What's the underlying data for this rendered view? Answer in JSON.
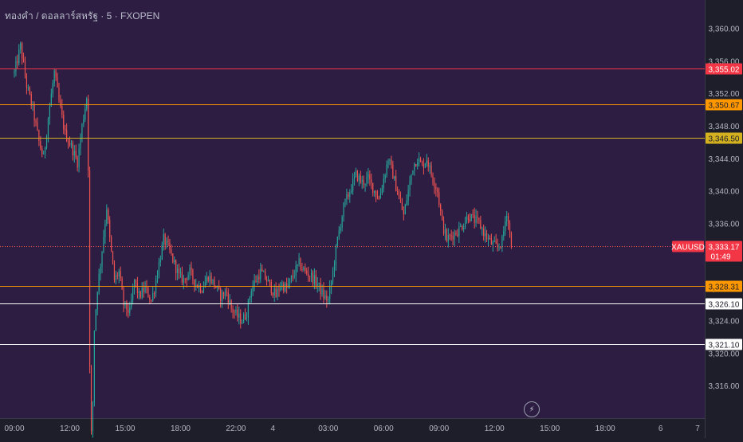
{
  "header": {
    "title": "ทองคำ / ดอลลาร์สหรัฐ · 5 · FXOPEN"
  },
  "colors": {
    "background": "#2d1d43",
    "axis_bg": "#1e1e2a",
    "bull": "#26a69a",
    "bear": "#ef5350",
    "red_level": "#f23645",
    "orange_level": "#ff9800",
    "yellow_level": "#d4b21f",
    "white_level": "#ffffff"
  },
  "icons": {
    "flash": "lightning-icon"
  },
  "chart_data": {
    "type": "candlestick",
    "symbol": "XAUUSD",
    "timeframe": "5",
    "ylim": [
      3312.0,
      3363.5
    ],
    "y_ticks": [
      {
        "value": 3316,
        "label": "3,316.00"
      },
      {
        "value": 3320,
        "label": "3,320.00"
      },
      {
        "value": 3324,
        "label": "3,324.00"
      },
      {
        "value": 3328,
        "label": "3,328.00"
      },
      {
        "value": 3332,
        "label": "3,332.00"
      },
      {
        "value": 3336,
        "label": "3,336.00"
      },
      {
        "value": 3340,
        "label": "3,340.00"
      },
      {
        "value": 3344,
        "label": "3,344.00"
      },
      {
        "value": 3348,
        "label": "3,348.00"
      },
      {
        "value": 3352,
        "label": "3,352.00"
      },
      {
        "value": 3356,
        "label": "3,356.00"
      },
      {
        "value": 3360,
        "label": "3,360.00"
      }
    ],
    "x_ticks": [
      {
        "label": "09:00",
        "t": 0
      },
      {
        "label": "12:00",
        "t": 36
      },
      {
        "label": "15:00",
        "t": 72
      },
      {
        "label": "18:00",
        "t": 108
      },
      {
        "label": "22:00",
        "t": 144
      },
      {
        "label": "4",
        "t": 168
      },
      {
        "label": "03:00",
        "t": 204
      },
      {
        "label": "06:00",
        "t": 240
      },
      {
        "label": "09:00",
        "t": 276
      },
      {
        "label": "12:00",
        "t": 312
      },
      {
        "label": "15:00",
        "t": 348
      },
      {
        "label": "18:00",
        "t": 384
      },
      {
        "label": "6",
        "t": 420
      },
      {
        "label": "7",
        "t": 444
      }
    ],
    "horizontal_levels": [
      {
        "value": 3355.02,
        "label": "3,355.02",
        "color": "#f23645",
        "text": "#ffffff"
      },
      {
        "value": 3350.67,
        "label": "3,350.67",
        "color": "#ff9800",
        "text": "#1e1e2a"
      },
      {
        "value": 3346.5,
        "label": "3,346.50",
        "color": "#d4b21f",
        "text": "#1e1e2a"
      },
      {
        "value": 3328.31,
        "label": "3,328.31",
        "color": "#ff9800",
        "text": "#1e1e2a"
      },
      {
        "value": 3326.1,
        "label": "3,326.10",
        "color": "#ffffff",
        "text": "#1e1e2a"
      },
      {
        "value": 3321.1,
        "label": "3,321.10",
        "color": "#ffffff",
        "text": "#1e1e2a"
      }
    ],
    "last_price": {
      "value": 3333.17,
      "label": "3,333.17",
      "countdown": "01:49",
      "symbol_tag": "XAUUSD"
    },
    "path": [
      [
        0,
        3354.5
      ],
      [
        4,
        3357.8
      ],
      [
        8,
        3353
      ],
      [
        12,
        3350
      ],
      [
        16,
        3346
      ],
      [
        19,
        3344
      ],
      [
        22,
        3349
      ],
      [
        26,
        3354.6
      ],
      [
        29,
        3351
      ],
      [
        33,
        3347
      ],
      [
        37,
        3345.5
      ],
      [
        41,
        3343.5
      ],
      [
        44,
        3348
      ],
      [
        47,
        3351.5
      ],
      [
        48,
        3343
      ],
      [
        49,
        3318
      ],
      [
        50,
        3310
      ],
      [
        51,
        3314
      ],
      [
        52,
        3323
      ],
      [
        54,
        3328
      ],
      [
        56,
        3331
      ],
      [
        60,
        3338
      ],
      [
        62,
        3334
      ],
      [
        65,
        3329
      ],
      [
        68,
        3330
      ],
      [
        71,
        3326
      ],
      [
        75,
        3325
      ],
      [
        78,
        3329
      ],
      [
        81,
        3327
      ],
      [
        85,
        3328
      ],
      [
        89,
        3326.5
      ],
      [
        91,
        3328
      ],
      [
        94,
        3331
      ],
      [
        97,
        3334
      ],
      [
        100,
        3333
      ],
      [
        104,
        3331
      ],
      [
        107,
        3329.5
      ],
      [
        110,
        3329
      ],
      [
        114,
        3330
      ],
      [
        118,
        3328.5
      ],
      [
        122,
        3328
      ],
      [
        126,
        3329.5
      ],
      [
        130,
        3328.5
      ],
      [
        134,
        3327
      ],
      [
        138,
        3327.5
      ],
      [
        141,
        3325.5
      ],
      [
        145,
        3324.5
      ],
      [
        148,
        3324
      ],
      [
        151,
        3325
      ],
      [
        154,
        3328
      ],
      [
        157,
        3329
      ],
      [
        160,
        3330
      ],
      [
        164,
        3329
      ],
      [
        167,
        3328
      ],
      [
        170,
        3327
      ],
      [
        173,
        3328.5
      ],
      [
        177,
        3328
      ],
      [
        181,
        3329.5
      ],
      [
        185,
        3331
      ],
      [
        189,
        3330
      ],
      [
        193,
        3329.5
      ],
      [
        197,
        3328.5
      ],
      [
        201,
        3327
      ],
      [
        204,
        3326.5
      ],
      [
        207,
        3330
      ],
      [
        210,
        3334
      ],
      [
        214,
        3338
      ],
      [
        218,
        3340
      ],
      [
        222,
        3342
      ],
      [
        226,
        3341
      ],
      [
        230,
        3341.5
      ],
      [
        234,
        3340
      ],
      [
        237,
        3339
      ],
      [
        240,
        3341.5
      ],
      [
        243,
        3344
      ],
      [
        246,
        3342
      ],
      [
        250,
        3339
      ],
      [
        253,
        3337
      ],
      [
        256,
        3340
      ],
      [
        259,
        3343
      ],
      [
        262,
        3344
      ],
      [
        265,
        3343
      ],
      [
        268,
        3344
      ],
      [
        271,
        3342
      ],
      [
        275,
        3340
      ],
      [
        278,
        3336
      ],
      [
        281,
        3334
      ],
      [
        284,
        3334.5
      ],
      [
        288,
        3335
      ],
      [
        292,
        3336
      ],
      [
        295,
        3337
      ],
      [
        298,
        3336.5
      ],
      [
        302,
        3336
      ],
      [
        306,
        3334.5
      ],
      [
        310,
        3333.5
      ],
      [
        314,
        3333
      ],
      [
        317,
        3333.8
      ],
      [
        320,
        3337.5
      ],
      [
        323,
        3333.2
      ]
    ]
  }
}
